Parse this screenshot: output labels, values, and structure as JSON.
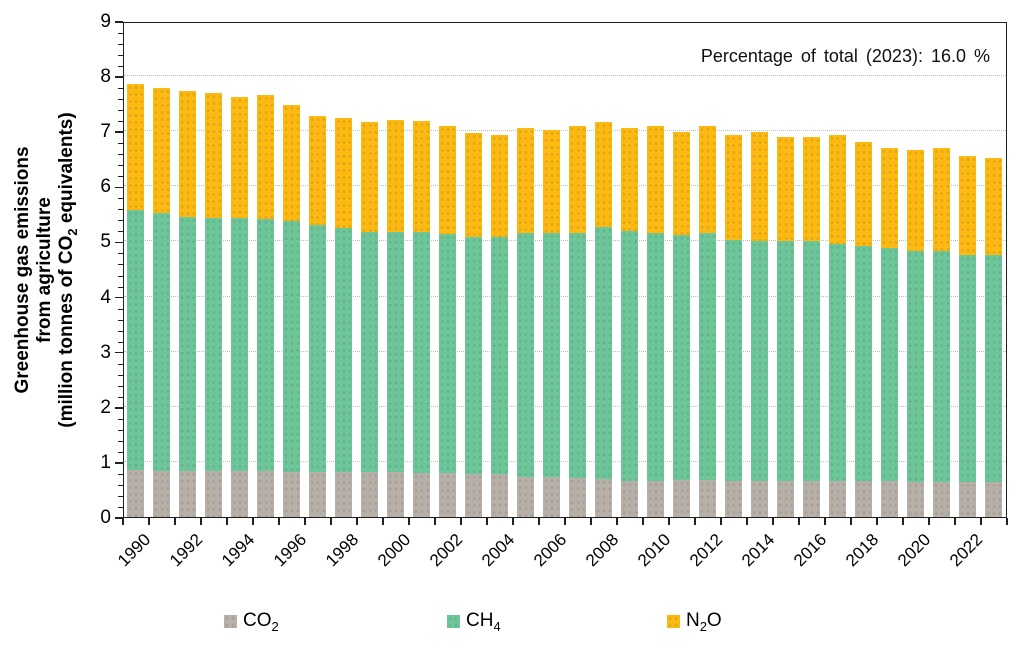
{
  "chart_data": {
    "type": "bar",
    "stacked": true,
    "annotation": "Percentage of total (2023):  16.0 %",
    "ylabel_lines": [
      "Greenhouse gas emissions",
      "from agriculture",
      "(million tonnes of CO2 equivalents)"
    ],
    "xlabel": "",
    "categories": [
      1990,
      1991,
      1992,
      1993,
      1994,
      1995,
      1996,
      1997,
      1998,
      1999,
      2000,
      2001,
      2002,
      2003,
      2004,
      2005,
      2006,
      2007,
      2008,
      2009,
      2010,
      2011,
      2012,
      2013,
      2014,
      2015,
      2016,
      2017,
      2018,
      2019,
      2020,
      2021,
      2022,
      2023
    ],
    "x_tick_labels": [
      "1990",
      "1992",
      "1994",
      "1996",
      "1998",
      "2000",
      "2002",
      "2004",
      "2006",
      "2008",
      "2010",
      "2012",
      "2014",
      "2016",
      "2018",
      "2020",
      "2022"
    ],
    "series": [
      {
        "name": "CO2",
        "color": "#b7b0a9",
        "values": [
          0.85,
          0.84,
          0.84,
          0.84,
          0.83,
          0.83,
          0.82,
          0.82,
          0.81,
          0.81,
          0.81,
          0.8,
          0.8,
          0.78,
          0.78,
          0.72,
          0.72,
          0.7,
          0.69,
          0.66,
          0.66,
          0.67,
          0.67,
          0.66,
          0.65,
          0.65,
          0.66,
          0.66,
          0.65,
          0.65,
          0.64,
          0.64,
          0.63,
          0.63
        ]
      },
      {
        "name": "CH4",
        "color": "#6cc699",
        "values": [
          4.72,
          4.68,
          4.61,
          4.58,
          4.6,
          4.58,
          4.56,
          4.47,
          4.44,
          4.37,
          4.36,
          4.38,
          4.34,
          4.31,
          4.31,
          4.43,
          4.43,
          4.45,
          4.57,
          4.53,
          4.49,
          4.44,
          4.48,
          4.37,
          4.35,
          4.35,
          4.35,
          4.29,
          4.27,
          4.24,
          4.19,
          4.19,
          4.12,
          4.12
        ]
      },
      {
        "name": "N2O",
        "color": "#fcb813",
        "values": [
          2.29,
          2.27,
          2.28,
          2.27,
          2.19,
          2.24,
          2.09,
          1.99,
          1.99,
          1.98,
          2.03,
          2.01,
          1.96,
          1.87,
          1.84,
          1.9,
          1.87,
          1.94,
          1.91,
          1.86,
          1.94,
          1.87,
          1.95,
          1.9,
          1.98,
          1.89,
          1.89,
          1.98,
          1.88,
          1.8,
          1.83,
          1.87,
          1.8,
          1.77
        ]
      }
    ],
    "ylim": [
      0,
      9
    ],
    "y_major_ticks": [
      0,
      1,
      2,
      3,
      4,
      5,
      6,
      7,
      8,
      9
    ],
    "y_minor_step": 0.2,
    "grid": "horizontal-dotted",
    "legend_position": "bottom"
  },
  "colors": {
    "co2": "#b7b0a9",
    "ch4": "#6cc699",
    "n2o": "#fcb813",
    "axis": "#1f1f1f",
    "gridline": "#bdbdbd"
  }
}
